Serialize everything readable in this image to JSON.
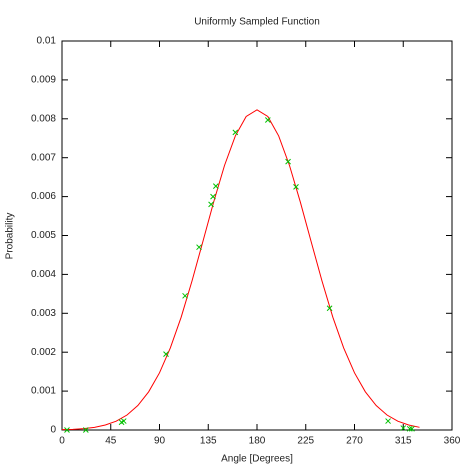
{
  "chart_data": {
    "type": "line",
    "title": "Uniformly Sampled Function",
    "x_label": "Angle [Degrees]",
    "y_label": "Probability",
    "xlim": [
      0,
      360
    ],
    "xticks": [
      0,
      45,
      90,
      135,
      180,
      225,
      270,
      315,
      360
    ],
    "ylim": [
      0,
      0.01
    ],
    "yticks": [
      0,
      0.001,
      0.002,
      0.003,
      0.004,
      0.005,
      0.006,
      0.007,
      0.008,
      0.009,
      0.01
    ],
    "grid": false,
    "series": [
      {
        "type": "line",
        "color": "#ff0000",
        "x": [
          0,
          10,
          20,
          30,
          40,
          50,
          60,
          70,
          80,
          90,
          100,
          110,
          120,
          130,
          140,
          150,
          160,
          170,
          180,
          190,
          200,
          210,
          220,
          230,
          240,
          250,
          260,
          270,
          280,
          290,
          300,
          310,
          320,
          330
        ],
        "values": [
          8.4e-06,
          1.76e-05,
          3.56e-05,
          6.89e-05,
          0.000128,
          0.000226,
          0.000385,
          0.000629,
          0.000982,
          0.00147,
          0.00211,
          0.0029,
          0.00383,
          0.00484,
          0.00586,
          0.0068,
          0.00756,
          0.00806,
          0.00823,
          0.00806,
          0.00756,
          0.0068,
          0.00586,
          0.00484,
          0.00383,
          0.0029,
          0.00211,
          0.00147,
          0.000982,
          0.000629,
          0.000385,
          0.000226,
          0.000128,
          6.89e-05
        ]
      },
      {
        "type": "scatter",
        "color": "#00c000",
        "x": [
          4.6,
          22,
          55,
          57,
          96,
          113.6,
          126.5,
          137.6,
          139.4,
          142,
          160,
          190,
          208.7,
          216,
          247,
          301,
          315,
          321,
          323
        ],
        "values": [
          0,
          0,
          0.0002,
          0.00023,
          0.00195,
          0.00345,
          0.0047,
          0.0058,
          0.006,
          0.00627,
          0.00765,
          0.00797,
          0.0069,
          0.00625,
          0.00313,
          0.00023,
          5e-05,
          3e-05,
          3e-05
        ]
      }
    ]
  }
}
